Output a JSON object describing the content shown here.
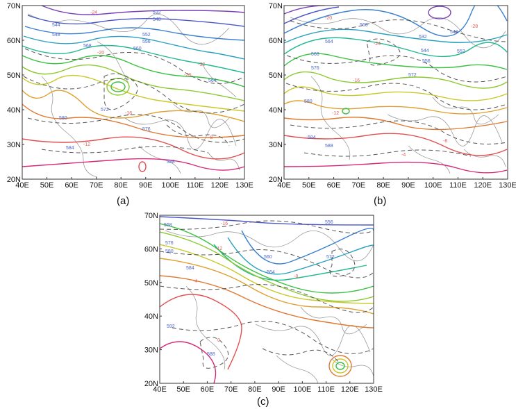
{
  "panels": [
    {
      "id": "a",
      "caption": "(a)",
      "lat_labels": [
        "70N",
        "60N",
        "50N",
        "40N",
        "30N",
        "20N"
      ],
      "lon_labels": [
        "40E",
        "50E",
        "60E",
        "70E",
        "80E",
        "90E",
        "100E",
        "110E",
        "120E",
        "130E"
      ],
      "height_labels": [
        "532",
        "536",
        "540",
        "544",
        "548",
        "552",
        "556",
        "560",
        "564",
        "568",
        "572",
        "576",
        "580",
        "584",
        "588"
      ],
      "temp_labels": [
        "-24",
        "-20",
        "-16",
        "-12",
        "-8",
        "-28",
        "-32"
      ]
    },
    {
      "id": "b",
      "caption": "(b)",
      "lat_labels": [
        "70N",
        "60N",
        "50N",
        "40N",
        "30N",
        "20N"
      ],
      "lon_labels": [
        "40E",
        "50E",
        "60E",
        "70E",
        "80E",
        "90E",
        "100E",
        "110E",
        "120E",
        "130E"
      ],
      "height_labels": [
        "532",
        "536",
        "540",
        "544",
        "548",
        "552",
        "556",
        "560",
        "564",
        "568",
        "572",
        "576",
        "580",
        "584",
        "588"
      ],
      "temp_labels": [
        "-24",
        "-20",
        "-16",
        "-12",
        "-8",
        "-4",
        "-28"
      ]
    },
    {
      "id": "c",
      "caption": "(c)",
      "lat_labels": [
        "70N",
        "60N",
        "50N",
        "40N",
        "30N",
        "20N"
      ],
      "lon_labels": [
        "40E",
        "50E",
        "60E",
        "70E",
        "80E",
        "90E",
        "100E",
        "110E",
        "120E",
        "130E"
      ],
      "height_labels": [
        "556",
        "560",
        "564",
        "568",
        "572",
        "576",
        "580",
        "584",
        "588",
        "592"
      ],
      "temp_labels": [
        "-16",
        "-12",
        "-8",
        "-4",
        "0"
      ]
    }
  ],
  "colors": {
    "height_label": "#4a64c8",
    "temp_label": "#e0605a",
    "temp_dash": "#555555",
    "coast": "#9a9a9a",
    "frame": "#333333"
  }
}
